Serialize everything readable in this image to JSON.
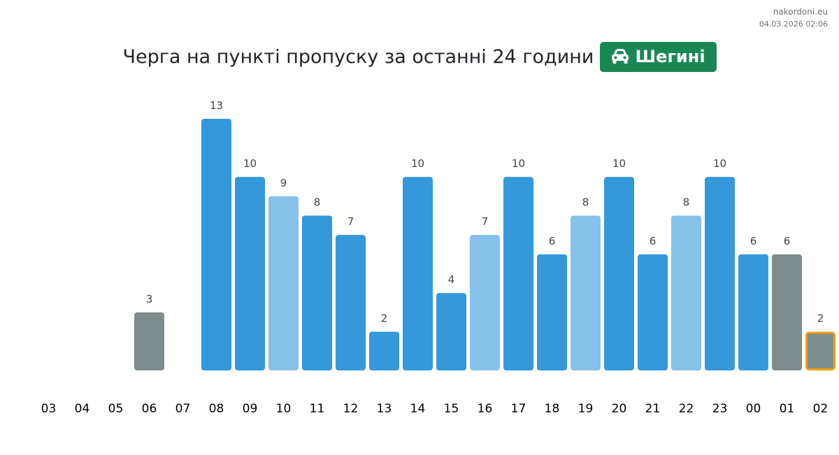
{
  "watermark": {
    "site": "nakordoni.eu",
    "datetime": "04.03.2026 02:06"
  },
  "header": {
    "title": "Черга на пункті пропуску за останні 24 години",
    "checkpoint": "Шегині",
    "checkpoint_icon": "car-icon"
  },
  "colors": {
    "normal": "#3498db",
    "light": "#85c1e9",
    "gray": "#7f8c8d",
    "highlight_border": "#f39c12",
    "badge": "#198754"
  },
  "chart_data": {
    "type": "bar",
    "categories": [
      "03",
      "04",
      "05",
      "06",
      "07",
      "08",
      "09",
      "10",
      "11",
      "12",
      "13",
      "14",
      "15",
      "16",
      "17",
      "18",
      "19",
      "20",
      "21",
      "22",
      "23",
      "00",
      "01",
      "02"
    ],
    "values": [
      null,
      null,
      null,
      3,
      null,
      13,
      10,
      9,
      8,
      7,
      2,
      10,
      4,
      7,
      10,
      6,
      8,
      10,
      6,
      8,
      10,
      6,
      6,
      2
    ],
    "bar_styles": [
      "none",
      "none",
      "none",
      "gray",
      "none",
      "normal",
      "normal",
      "light",
      "normal",
      "normal",
      "normal",
      "normal",
      "normal",
      "light",
      "normal",
      "normal",
      "light",
      "normal",
      "normal",
      "light",
      "normal",
      "normal",
      "gray",
      "gray"
    ],
    "highlighted_category": "02",
    "ylim": [
      0,
      13
    ],
    "grid": false,
    "legend": "none"
  }
}
